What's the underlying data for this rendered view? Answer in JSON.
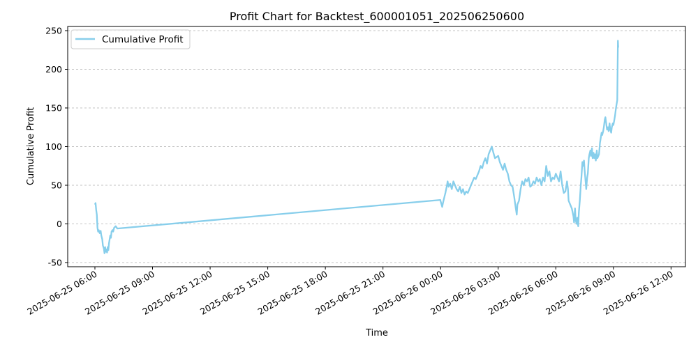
{
  "chart_data": {
    "type": "line",
    "title": "Profit Chart for Backtest_600001051_202506250600",
    "xlabel": "Time",
    "ylabel": "Cumulative Profit",
    "ylim": [
      -50,
      250
    ],
    "xlim": [
      "2025-06-25 04:35",
      "2025-06-26 12:45"
    ],
    "y_ticks": [
      -50,
      0,
      50,
      100,
      150,
      200,
      250
    ],
    "x_ticks": [
      {
        "t": "2025-06-25 06:00",
        "label": "2025-06-25 06:00"
      },
      {
        "t": "2025-06-25 09:00",
        "label": "2025-06-25 09:00"
      },
      {
        "t": "2025-06-25 12:00",
        "label": "2025-06-25 12:00"
      },
      {
        "t": "2025-06-25 15:00",
        "label": "2025-06-25 15:00"
      },
      {
        "t": "2025-06-25 18:00",
        "label": "2025-06-25 18:00"
      },
      {
        "t": "2025-06-25 21:00",
        "label": "2025-06-25 21:00"
      },
      {
        "t": "2025-06-26 00:00",
        "label": "2025-06-26 00:00"
      },
      {
        "t": "2025-06-26 03:00",
        "label": "2025-06-26 03:00"
      },
      {
        "t": "2025-06-26 06:00",
        "label": "2025-06-26 06:00"
      },
      {
        "t": "2025-06-26 09:00",
        "label": "2025-06-26 09:00"
      },
      {
        "t": "2025-06-26 12:00",
        "label": "2025-06-26 12:00"
      }
    ],
    "grid": "y-dashed",
    "legend_position": "top-left",
    "series": [
      {
        "name": "Cumulative Profit",
        "color": "#87ceeb",
        "points": [
          [
            "2025-06-25 06:00",
            25
          ],
          [
            "2025-06-25 06:02",
            27
          ],
          [
            "2025-06-25 06:04",
            18
          ],
          [
            "2025-06-25 06:06",
            12
          ],
          [
            "2025-06-25 06:08",
            -5
          ],
          [
            "2025-06-25 06:10",
            -10
          ],
          [
            "2025-06-25 06:12",
            -8
          ],
          [
            "2025-06-25 06:15",
            -12
          ],
          [
            "2025-06-25 06:18",
            -9
          ],
          [
            "2025-06-25 06:20",
            -15
          ],
          [
            "2025-06-25 06:23",
            -20
          ],
          [
            "2025-06-25 06:25",
            -28
          ],
          [
            "2025-06-25 06:28",
            -32
          ],
          [
            "2025-06-25 06:30",
            -38
          ],
          [
            "2025-06-25 06:32",
            -30
          ],
          [
            "2025-06-25 06:34",
            -36
          ],
          [
            "2025-06-25 06:36",
            -33
          ],
          [
            "2025-06-25 06:38",
            -37
          ],
          [
            "2025-06-25 06:40",
            -30
          ],
          [
            "2025-06-25 06:42",
            -34
          ],
          [
            "2025-06-25 06:44",
            -25
          ],
          [
            "2025-06-25 06:46",
            -20
          ],
          [
            "2025-06-25 06:48",
            -15
          ],
          [
            "2025-06-25 06:50",
            -18
          ],
          [
            "2025-06-25 06:52",
            -10
          ],
          [
            "2025-06-25 06:55",
            -8
          ],
          [
            "2025-06-25 06:57",
            -10
          ],
          [
            "2025-06-25 07:00",
            -5
          ],
          [
            "2025-06-25 07:05",
            -3
          ],
          [
            "2025-06-25 07:10",
            -6
          ],
          [
            "2025-06-25 23:59",
            31
          ],
          [
            "2025-06-26 00:05",
            22
          ],
          [
            "2025-06-26 00:08",
            28
          ],
          [
            "2025-06-26 00:12",
            35
          ],
          [
            "2025-06-26 00:15",
            40
          ],
          [
            "2025-06-26 00:20",
            50
          ],
          [
            "2025-06-26 00:22",
            55
          ],
          [
            "2025-06-26 00:25",
            48
          ],
          [
            "2025-06-26 00:30",
            52
          ],
          [
            "2025-06-26 00:35",
            45
          ],
          [
            "2025-06-26 00:40",
            55
          ],
          [
            "2025-06-26 00:45",
            50
          ],
          [
            "2025-06-26 00:50",
            45
          ],
          [
            "2025-06-26 00:55",
            42
          ],
          [
            "2025-06-26 01:00",
            48
          ],
          [
            "2025-06-26 01:05",
            40
          ],
          [
            "2025-06-26 01:10",
            45
          ],
          [
            "2025-06-26 01:15",
            38
          ],
          [
            "2025-06-26 01:20",
            42
          ],
          [
            "2025-06-26 01:25",
            40
          ],
          [
            "2025-06-26 01:30",
            45
          ],
          [
            "2025-06-26 01:40",
            55
          ],
          [
            "2025-06-26 01:45",
            60
          ],
          [
            "2025-06-26 01:50",
            58
          ],
          [
            "2025-06-26 02:00",
            68
          ],
          [
            "2025-06-26 02:05",
            75
          ],
          [
            "2025-06-26 02:10",
            72
          ],
          [
            "2025-06-26 02:15",
            80
          ],
          [
            "2025-06-26 02:20",
            85
          ],
          [
            "2025-06-26 02:25",
            78
          ],
          [
            "2025-06-26 02:30",
            90
          ],
          [
            "2025-06-26 02:35",
            95
          ],
          [
            "2025-06-26 02:40",
            100
          ],
          [
            "2025-06-26 02:45",
            92
          ],
          [
            "2025-06-26 02:50",
            85
          ],
          [
            "2025-06-26 03:00",
            88
          ],
          [
            "2025-06-26 03:05",
            80
          ],
          [
            "2025-06-26 03:10",
            75
          ],
          [
            "2025-06-26 03:15",
            70
          ],
          [
            "2025-06-26 03:20",
            78
          ],
          [
            "2025-06-26 03:25",
            70
          ],
          [
            "2025-06-26 03:30",
            65
          ],
          [
            "2025-06-26 03:35",
            55
          ],
          [
            "2025-06-26 03:40",
            50
          ],
          [
            "2025-06-26 03:45",
            48
          ],
          [
            "2025-06-26 03:50",
            35
          ],
          [
            "2025-06-26 03:55",
            20
          ],
          [
            "2025-06-26 03:58",
            12
          ],
          [
            "2025-06-26 04:00",
            25
          ],
          [
            "2025-06-26 04:05",
            30
          ],
          [
            "2025-06-26 04:10",
            45
          ],
          [
            "2025-06-26 04:15",
            55
          ],
          [
            "2025-06-26 04:20",
            50
          ],
          [
            "2025-06-26 04:25",
            58
          ],
          [
            "2025-06-26 04:30",
            55
          ],
          [
            "2025-06-26 04:35",
            60
          ],
          [
            "2025-06-26 04:40",
            48
          ],
          [
            "2025-06-26 04:45",
            50
          ],
          [
            "2025-06-26 04:50",
            55
          ],
          [
            "2025-06-26 04:55",
            52
          ],
          [
            "2025-06-26 05:00",
            60
          ],
          [
            "2025-06-26 05:05",
            55
          ],
          [
            "2025-06-26 05:10",
            58
          ],
          [
            "2025-06-26 05:15",
            50
          ],
          [
            "2025-06-26 05:20",
            60
          ],
          [
            "2025-06-26 05:25",
            55
          ],
          [
            "2025-06-26 05:30",
            75
          ],
          [
            "2025-06-26 05:35",
            62
          ],
          [
            "2025-06-26 05:40",
            68
          ],
          [
            "2025-06-26 05:45",
            55
          ],
          [
            "2025-06-26 05:50",
            60
          ],
          [
            "2025-06-26 05:55",
            58
          ],
          [
            "2025-06-26 06:00",
            65
          ],
          [
            "2025-06-26 06:05",
            60
          ],
          [
            "2025-06-26 06:10",
            55
          ],
          [
            "2025-06-26 06:15",
            68
          ],
          [
            "2025-06-26 06:20",
            50
          ],
          [
            "2025-06-26 06:25",
            40
          ],
          [
            "2025-06-26 06:30",
            42
          ],
          [
            "2025-06-26 06:35",
            55
          ],
          [
            "2025-06-26 06:38",
            45
          ],
          [
            "2025-06-26 06:40",
            30
          ],
          [
            "2025-06-26 06:45",
            25
          ],
          [
            "2025-06-26 06:50",
            20
          ],
          [
            "2025-06-26 06:55",
            10
          ],
          [
            "2025-06-26 06:57",
            2
          ],
          [
            "2025-06-26 07:00",
            20
          ],
          [
            "2025-06-26 07:02",
            5
          ],
          [
            "2025-06-26 07:05",
            0
          ],
          [
            "2025-06-26 07:07",
            8
          ],
          [
            "2025-06-26 07:10",
            -3
          ],
          [
            "2025-06-26 07:12",
            15
          ],
          [
            "2025-06-26 07:15",
            30
          ],
          [
            "2025-06-26 07:18",
            50
          ],
          [
            "2025-06-26 07:20",
            60
          ],
          [
            "2025-06-26 07:23",
            80
          ],
          [
            "2025-06-26 07:25",
            75
          ],
          [
            "2025-06-26 07:28",
            82
          ],
          [
            "2025-06-26 07:30",
            70
          ],
          [
            "2025-06-26 07:33",
            55
          ],
          [
            "2025-06-26 07:35",
            45
          ],
          [
            "2025-06-26 07:38",
            60
          ],
          [
            "2025-06-26 07:40",
            65
          ],
          [
            "2025-06-26 07:43",
            85
          ],
          [
            "2025-06-26 07:45",
            90
          ],
          [
            "2025-06-26 07:48",
            95
          ],
          [
            "2025-06-26 07:50",
            88
          ],
          [
            "2025-06-26 07:53",
            98
          ],
          [
            "2025-06-26 07:55",
            85
          ],
          [
            "2025-06-26 07:58",
            92
          ],
          [
            "2025-06-26 08:00",
            85
          ],
          [
            "2025-06-26 08:03",
            90
          ],
          [
            "2025-06-26 08:05",
            82
          ],
          [
            "2025-06-26 08:08",
            95
          ],
          [
            "2025-06-26 08:10",
            85
          ],
          [
            "2025-06-26 08:13",
            88
          ],
          [
            "2025-06-26 08:15",
            90
          ],
          [
            "2025-06-26 08:18",
            105
          ],
          [
            "2025-06-26 08:20",
            110
          ],
          [
            "2025-06-26 08:23",
            118
          ],
          [
            "2025-06-26 08:25",
            115
          ],
          [
            "2025-06-26 08:28",
            120
          ],
          [
            "2025-06-26 08:30",
            125
          ],
          [
            "2025-06-26 08:33",
            135
          ],
          [
            "2025-06-26 08:35",
            138
          ],
          [
            "2025-06-26 08:38",
            128
          ],
          [
            "2025-06-26 08:40",
            122
          ],
          [
            "2025-06-26 08:43",
            125
          ],
          [
            "2025-06-26 08:45",
            120
          ],
          [
            "2025-06-26 08:48",
            130
          ],
          [
            "2025-06-26 08:50",
            122
          ],
          [
            "2025-06-26 08:53",
            118
          ],
          [
            "2025-06-26 08:55",
            125
          ],
          [
            "2025-06-26 08:58",
            130
          ],
          [
            "2025-06-26 09:00",
            128
          ],
          [
            "2025-06-26 09:03",
            135
          ],
          [
            "2025-06-26 09:05",
            140
          ],
          [
            "2025-06-26 09:08",
            150
          ],
          [
            "2025-06-26 09:10",
            155
          ],
          [
            "2025-06-26 09:12",
            160
          ],
          [
            "2025-06-26 09:14",
            237
          ],
          [
            "2025-06-26 09:15",
            228
          ]
        ]
      }
    ]
  }
}
